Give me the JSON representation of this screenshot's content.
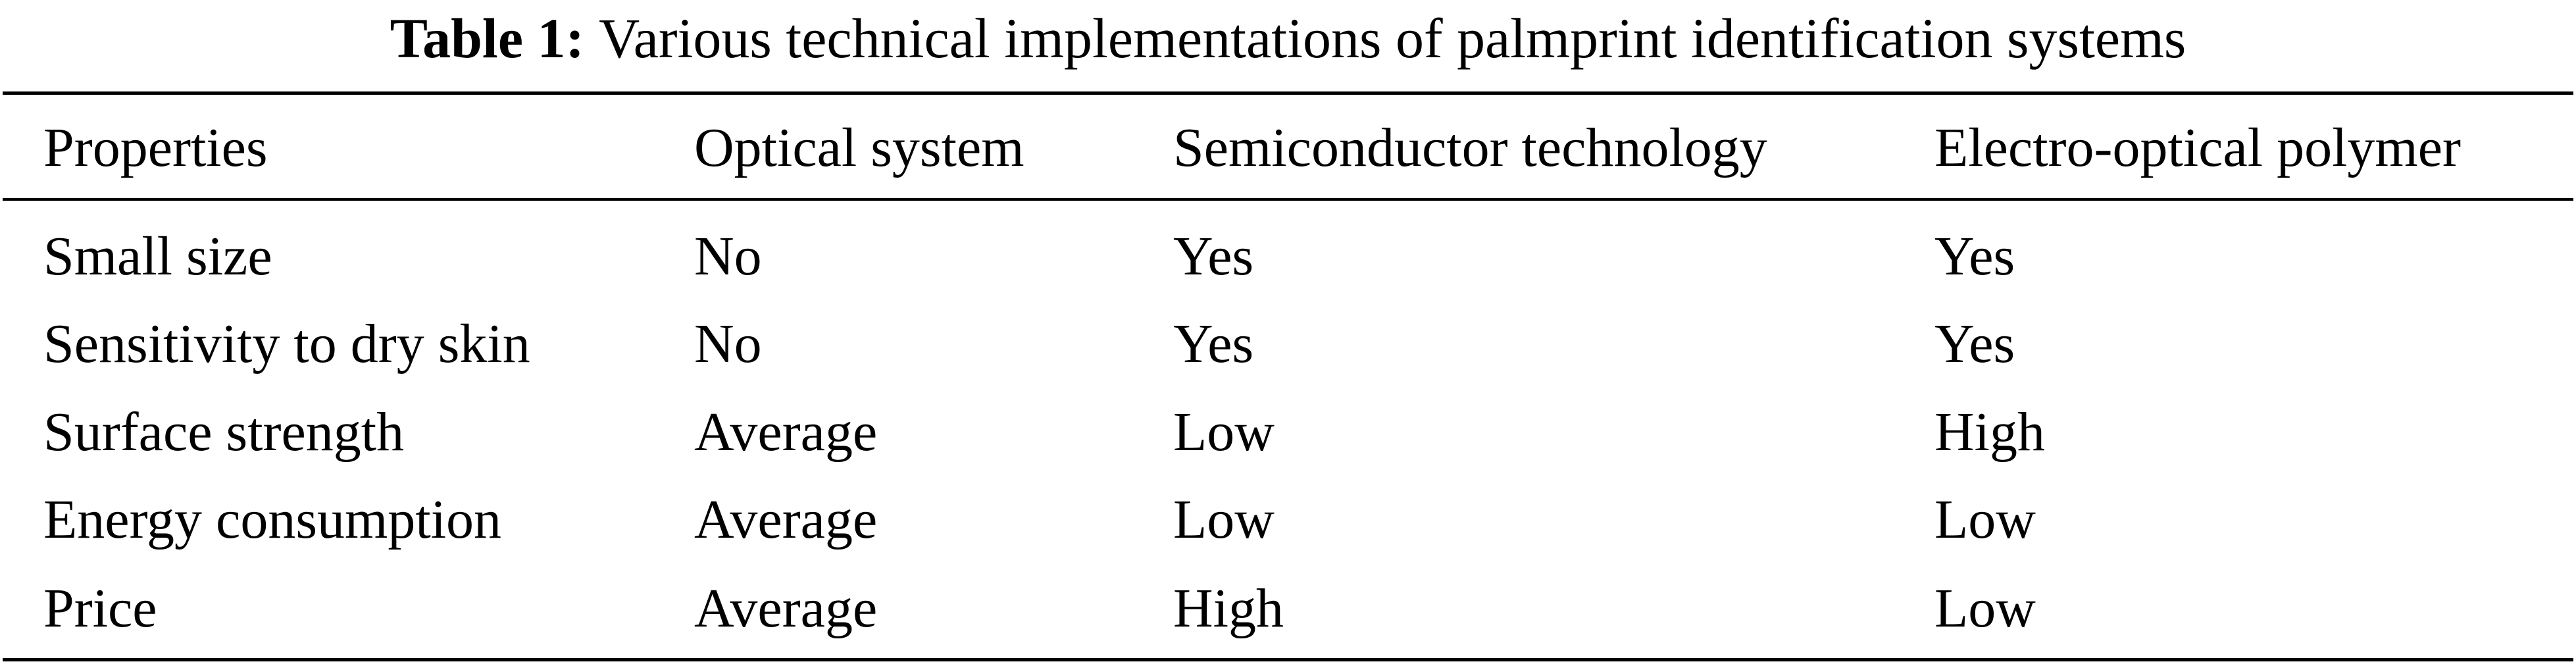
{
  "caption": {
    "label": "Table 1:",
    "text": "Various technical implementations of palmprint identification systems"
  },
  "table": {
    "headers": [
      "Properties",
      "Optical system",
      "Semiconductor technology",
      "Electro-optical polymer"
    ],
    "rows": [
      [
        "Small size",
        "No",
        "Yes",
        "Yes"
      ],
      [
        "Sensitivity to dry skin",
        "No",
        "Yes",
        "Yes"
      ],
      [
        "Surface strength",
        "Average",
        "Low",
        "High"
      ],
      [
        "Energy consumption",
        "Average",
        "Low",
        "Low"
      ],
      [
        "Price",
        "Average",
        "High",
        "Low"
      ]
    ]
  }
}
